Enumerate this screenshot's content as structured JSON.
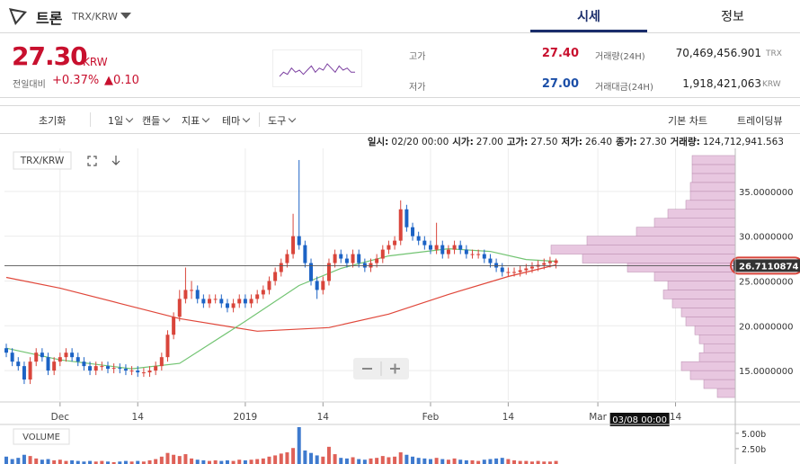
{
  "header": {
    "name": "트론",
    "pair": "TRX/KRW",
    "tabs": [
      "시세",
      "정보"
    ]
  },
  "quote": {
    "price": "27.30",
    "currency": "KRW",
    "change_label": "전일대비",
    "change_pct": "+0.37%",
    "change_abs": "▲0.10",
    "high_label": "고가",
    "high": "27.40",
    "low_label": "저가",
    "low": "27.00",
    "volume_label": "거래량(24H)",
    "volume": "70,469,456.901",
    "volume_unit": "TRX",
    "turnover_label": "거래대금(24H)",
    "turnover": "1,918,421,063",
    "turnover_unit": "KRW"
  },
  "sparkline": [
    27.1,
    27.3,
    27.2,
    27.5,
    27.3,
    27.4,
    27.2,
    27.4,
    27.6,
    27.3,
    27.5,
    27.4,
    27.7,
    27.5,
    27.3,
    27.6,
    27.4,
    27.5,
    27.3,
    27.3
  ],
  "toolbar": {
    "left": [
      "초기화",
      "1일",
      "캔들",
      "지표",
      "테마",
      "도구"
    ],
    "right": [
      "기본 차트",
      "트레이딩뷰"
    ]
  },
  "chart_data": {
    "type": "candlestick",
    "pair_label": "TRX/KRW",
    "ohlc_header": [
      {
        "label": "일시:",
        "value": "02/20 00:00"
      },
      {
        "label": "시가:",
        "value": "27.00"
      },
      {
        "label": "고가:",
        "value": "27.50"
      },
      {
        "label": "저가:",
        "value": "26.40"
      },
      {
        "label": "종가:",
        "value": "27.30"
      },
      {
        "label": "거래량:",
        "value": "124,712,941.563"
      }
    ],
    "up_color": "#d9453b",
    "down_color": "#1c63c5",
    "grid": true,
    "x": [
      -9,
      -8,
      -7,
      -6,
      -5,
      -4,
      -3,
      -2,
      -1,
      0,
      1,
      2,
      3,
      4,
      5,
      6,
      7,
      8,
      9,
      10,
      11,
      12,
      13,
      14,
      15,
      16,
      17,
      18,
      19,
      20,
      21,
      22,
      23,
      24,
      25,
      26,
      27,
      28,
      29,
      30,
      31,
      32,
      33,
      34,
      35,
      36,
      37,
      38,
      39,
      40,
      41,
      42,
      43,
      44,
      45,
      46,
      47,
      48,
      49,
      50,
      51,
      52,
      53,
      54,
      55,
      56,
      57,
      58,
      59,
      60,
      61,
      62,
      63,
      64,
      65,
      66,
      67,
      68,
      69,
      70,
      71,
      72,
      73,
      74,
      75,
      76,
      77,
      78,
      79,
      80,
      81,
      82,
      83
    ],
    "open": [
      17.5,
      17,
      16,
      15.5,
      14,
      16,
      17,
      16.5,
      15,
      16,
      16.5,
      17,
      16.5,
      16,
      15.5,
      15,
      15.5,
      15.5,
      15.2,
      15.3,
      15.2,
      15,
      15,
      14.8,
      14.8,
      15,
      15.5,
      16.5,
      19,
      21,
      23,
      24,
      24,
      23,
      22.5,
      23,
      23,
      22.5,
      22,
      22.5,
      23,
      22.5,
      23,
      23.5,
      24,
      25,
      26,
      27,
      28,
      30,
      29,
      27,
      25,
      24,
      25,
      27,
      28,
      27.5,
      27,
      28,
      27,
      26.5,
      27,
      27.5,
      28.5,
      29,
      29.5,
      33,
      31,
      30,
      29.5,
      29,
      28.5,
      29,
      28,
      28.5,
      29,
      28.5,
      28,
      28,
      28,
      27.5,
      27,
      26.5,
      26,
      26,
      26,
      26.2,
      26.4,
      26.6,
      26.8,
      27,
      27
    ],
    "high": [
      18,
      17.5,
      16.5,
      16,
      16.5,
      17.5,
      17.5,
      17,
      16.5,
      17,
      17.5,
      17.5,
      17,
      16.5,
      16,
      16,
      16,
      16,
      15.8,
      15.8,
      15.7,
      15.5,
      15.5,
      15.3,
      15.5,
      16,
      17,
      19.5,
      21.5,
      24,
      26.5,
      25,
      24.5,
      23.5,
      23.5,
      23.5,
      23.5,
      23,
      23,
      23.5,
      23.5,
      23.5,
      24,
      24.5,
      25.5,
      26.5,
      27.5,
      28.5,
      32.5,
      38.5,
      29.5,
      27.5,
      25.5,
      25.5,
      27.5,
      28.5,
      28.5,
      28,
      28.5,
      28.5,
      27.5,
      27.5,
      28,
      29,
      29.5,
      30,
      34,
      33.5,
      31.5,
      30.5,
      30,
      29.5,
      31.5,
      29.5,
      29,
      29.5,
      29.5,
      29,
      28.5,
      28.5,
      28.5,
      28,
      27.5,
      27,
      26.5,
      26.5,
      26.7,
      26.9,
      27.1,
      27.3,
      27.5,
      27.7,
      27.5
    ],
    "low": [
      16.5,
      15.5,
      15,
      13.5,
      13.5,
      15.5,
      16,
      14.5,
      14.5,
      15.5,
      16,
      16,
      15.5,
      15,
      14.5,
      14.5,
      15,
      14.7,
      14.7,
      14.7,
      14.5,
      14.5,
      14.3,
      14.3,
      14.3,
      14.5,
      15,
      16,
      18.5,
      20.5,
      22.5,
      23,
      22.5,
      22,
      22,
      22.5,
      22,
      21.5,
      21.5,
      22,
      22,
      22,
      22.5,
      23,
      23.5,
      24.5,
      25.5,
      26.5,
      27.5,
      28.5,
      26.5,
      24.5,
      23,
      23.5,
      24.5,
      26.5,
      27,
      26.5,
      26.5,
      26.5,
      26,
      26,
      26.5,
      27,
      28,
      28.5,
      29,
      30.5,
      29.5,
      29,
      28.5,
      28,
      28,
      27.5,
      27.5,
      28,
      28,
      27.5,
      27.5,
      27.5,
      27,
      26.5,
      26,
      25.5,
      25.5,
      25.5,
      25.5,
      25.7,
      25.9,
      26.1,
      26.3,
      26.5,
      26.4
    ],
    "close": [
      17,
      16,
      15.5,
      14,
      16,
      17,
      16.5,
      15,
      16,
      16.5,
      17,
      16.5,
      16,
      15.5,
      15,
      15.5,
      15.5,
      15.2,
      15.3,
      15.2,
      15,
      15,
      14.8,
      14.8,
      15,
      15.5,
      16.5,
      19,
      21,
      23,
      24,
      24,
      23,
      22.5,
      23,
      23,
      22.5,
      22,
      22.5,
      23,
      22.5,
      23,
      23.5,
      24,
      25,
      26,
      27,
      28,
      30,
      29,
      27,
      25,
      24,
      25,
      27,
      28,
      27.5,
      27,
      28,
      27,
      26.5,
      27,
      27.5,
      28.5,
      29,
      29.5,
      33,
      31,
      30,
      29.5,
      29,
      28.5,
      29,
      28,
      28.5,
      29,
      28.5,
      28,
      28,
      28,
      27.5,
      27,
      26.5,
      26,
      26,
      26,
      26.2,
      26.4,
      26.6,
      26.8,
      27,
      27.2,
      27.3
    ],
    "xlim": [
      -9.3,
      113
    ],
    "xticks": [
      {
        "value": 0,
        "label": "Dec"
      },
      {
        "value": 13,
        "label": "14"
      },
      {
        "value": 31,
        "label": "2019"
      },
      {
        "value": 44,
        "label": "14"
      },
      {
        "value": 62,
        "label": "Feb"
      },
      {
        "value": 75,
        "label": "14"
      },
      {
        "value": 90,
        "label": "Mar"
      },
      {
        "value": 103,
        "label": "14"
      }
    ],
    "ylim": [
      11.7,
      39.8
    ],
    "yticks": [
      {
        "value": 15,
        "label": "15.0000000"
      },
      {
        "value": 20,
        "label": "20.0000000"
      },
      {
        "value": 25,
        "label": "25.0000000"
      },
      {
        "value": 30,
        "label": "30.0000000"
      },
      {
        "value": 35,
        "label": "35.0000000"
      }
    ],
    "moving_averages": [
      {
        "color": "#e0473a",
        "x": [
          -9,
          0,
          10,
          20,
          33,
          45,
          55,
          65,
          75,
          83
        ],
        "values": [
          25.4,
          24.2,
          22.5,
          20.8,
          19.4,
          19.8,
          21.3,
          23.5,
          25.5,
          26.8
        ]
      },
      {
        "color": "#72c472",
        "x": [
          -9,
          0,
          12,
          20,
          31,
          40,
          47,
          55,
          65,
          72,
          78,
          83
        ],
        "values": [
          17.5,
          16.2,
          15.2,
          15.8,
          20.5,
          24.5,
          26.4,
          27.8,
          28.6,
          28.3,
          27.4,
          27.2
        ]
      }
    ],
    "last_price": 26.7110874,
    "crosshair_x": 97,
    "crosshair_label": "03/08 00:00",
    "volume_profile": {
      "color": "#e8c7e0",
      "prices": [
        12.5,
        13.5,
        14.5,
        15.5,
        16.5,
        17.5,
        18.5,
        19.5,
        20.5,
        21.5,
        22.5,
        23.5,
        24.5,
        25.5,
        26.5,
        27.5,
        28.5,
        29.5,
        30.5,
        31.5,
        32.5,
        33.5,
        34.5,
        35.5,
        36.5,
        37.5,
        38.5
      ],
      "values": [
        20,
        35,
        50,
        60,
        40,
        35,
        40,
        45,
        55,
        60,
        70,
        80,
        75,
        90,
        120,
        170,
        205,
        165,
        110,
        90,
        75,
        55,
        50,
        50,
        48,
        48,
        48
      ]
    },
    "volume": {
      "label": "VOLUME",
      "values": [
        1.2,
        0.8,
        1.0,
        1.5,
        1.3,
        0.9,
        0.7,
        0.8,
        0.6,
        0.7,
        0.5,
        0.6,
        0.5,
        0.4,
        0.5,
        0.4,
        0.5,
        0.4,
        0.3,
        0.4,
        0.5,
        0.4,
        0.5,
        0.4,
        0.6,
        0.8,
        1.2,
        1.8,
        1.5,
        1.3,
        1.6,
        0.9,
        0.7,
        0.6,
        0.5,
        0.6,
        0.5,
        0.6,
        0.5,
        0.7,
        0.6,
        0.7,
        0.8,
        0.9,
        1.2,
        1.4,
        1.7,
        1.9,
        2.6,
        6.5,
        2.2,
        1.8,
        1.4,
        1.2,
        2.8,
        1.6,
        1.0,
        0.9,
        1.1,
        0.8,
        0.7,
        0.9,
        1.0,
        1.3,
        1.1,
        1.2,
        1.9,
        1.5,
        1.2,
        1.0,
        0.9,
        0.8,
        1.0,
        0.8,
        0.7,
        0.9,
        0.7,
        0.6,
        0.6,
        0.5,
        0.7,
        0.8,
        0.9,
        1.0,
        0.8,
        0.6,
        0.5,
        0.5,
        0.4,
        0.5,
        0.4,
        0.4,
        0.5
      ],
      "ylim": [
        0,
        6
      ],
      "yticks": [
        {
          "value": 2.5,
          "label": "2.50b"
        },
        {
          "value": 5,
          "label": "5.00b"
        }
      ]
    }
  }
}
